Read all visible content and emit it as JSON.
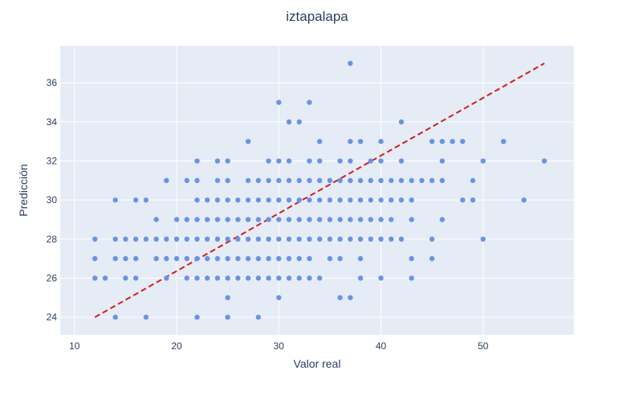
{
  "chart_data": {
    "type": "scatter",
    "title": "iztapalapa",
    "xlabel": "Valor real",
    "ylabel": "Predicción",
    "xlim": [
      8.6,
      58.9
    ],
    "ylim": [
      23.1,
      37.9
    ],
    "xticks": [
      10,
      20,
      30,
      40,
      50
    ],
    "yticks": [
      24,
      26,
      28,
      30,
      32,
      34,
      36
    ],
    "grid": true,
    "colors": {
      "points": "#6a93e4",
      "reference": "#cc1f1f",
      "plot_bg": "#e5ecf6",
      "grid": "#ffffff",
      "text": "#2a3f5f"
    },
    "reference_line": {
      "x": [
        12,
        56
      ],
      "y": [
        24,
        37
      ]
    },
    "points": [
      [
        12,
        26
      ],
      [
        12,
        27
      ],
      [
        12,
        28
      ],
      [
        13,
        26
      ],
      [
        14,
        24
      ],
      [
        14,
        27
      ],
      [
        14,
        28
      ],
      [
        14,
        30
      ],
      [
        15,
        26
      ],
      [
        15,
        27
      ],
      [
        15,
        28
      ],
      [
        16,
        26
      ],
      [
        16,
        27
      ],
      [
        16,
        28
      ],
      [
        16,
        30
      ],
      [
        17,
        24
      ],
      [
        17,
        28
      ],
      [
        17,
        30
      ],
      [
        18,
        27
      ],
      [
        18,
        28
      ],
      [
        18,
        29
      ],
      [
        19,
        26
      ],
      [
        19,
        27
      ],
      [
        19,
        28
      ],
      [
        19,
        31
      ],
      [
        20,
        27
      ],
      [
        20,
        28
      ],
      [
        20,
        29
      ],
      [
        21,
        26
      ],
      [
        21,
        27
      ],
      [
        21,
        28
      ],
      [
        21,
        29
      ],
      [
        21,
        31
      ],
      [
        22,
        24
      ],
      [
        22,
        26
      ],
      [
        22,
        27
      ],
      [
        22,
        28
      ],
      [
        22,
        29
      ],
      [
        22,
        30
      ],
      [
        22,
        31
      ],
      [
        22,
        32
      ],
      [
        23,
        26
      ],
      [
        23,
        27
      ],
      [
        23,
        28
      ],
      [
        23,
        29
      ],
      [
        23,
        30
      ],
      [
        24,
        26
      ],
      [
        24,
        27
      ],
      [
        24,
        28
      ],
      [
        24,
        29
      ],
      [
        24,
        30
      ],
      [
        24,
        31
      ],
      [
        24,
        32
      ],
      [
        25,
        24
      ],
      [
        25,
        25
      ],
      [
        25,
        26
      ],
      [
        25,
        27
      ],
      [
        25,
        28
      ],
      [
        25,
        29
      ],
      [
        25,
        30
      ],
      [
        25,
        31
      ],
      [
        25,
        32
      ],
      [
        26,
        26
      ],
      [
        26,
        27
      ],
      [
        26,
        28
      ],
      [
        26,
        29
      ],
      [
        26,
        30
      ],
      [
        27,
        26
      ],
      [
        27,
        27
      ],
      [
        27,
        28
      ],
      [
        27,
        29
      ],
      [
        27,
        30
      ],
      [
        27,
        31
      ],
      [
        27,
        33
      ],
      [
        28,
        24
      ],
      [
        28,
        26
      ],
      [
        28,
        27
      ],
      [
        28,
        28
      ],
      [
        28,
        29
      ],
      [
        28,
        30
      ],
      [
        28,
        31
      ],
      [
        29,
        26
      ],
      [
        29,
        27
      ],
      [
        29,
        28
      ],
      [
        29,
        29
      ],
      [
        29,
        30
      ],
      [
        29,
        31
      ],
      [
        29,
        32
      ],
      [
        30,
        25
      ],
      [
        30,
        26
      ],
      [
        30,
        27
      ],
      [
        30,
        28
      ],
      [
        30,
        29
      ],
      [
        30,
        30
      ],
      [
        30,
        31
      ],
      [
        30,
        32
      ],
      [
        30,
        35
      ],
      [
        31,
        26
      ],
      [
        31,
        27
      ],
      [
        31,
        28
      ],
      [
        31,
        29
      ],
      [
        31,
        30
      ],
      [
        31,
        31
      ],
      [
        31,
        32
      ],
      [
        31,
        34
      ],
      [
        32,
        26
      ],
      [
        32,
        27
      ],
      [
        32,
        28
      ],
      [
        32,
        29
      ],
      [
        32,
        30
      ],
      [
        32,
        31
      ],
      [
        32,
        34
      ],
      [
        33,
        26
      ],
      [
        33,
        27
      ],
      [
        33,
        28
      ],
      [
        33,
        29
      ],
      [
        33,
        30
      ],
      [
        33,
        31
      ],
      [
        33,
        32
      ],
      [
        33,
        35
      ],
      [
        34,
        26
      ],
      [
        34,
        28
      ],
      [
        34,
        29
      ],
      [
        34,
        30
      ],
      [
        34,
        31
      ],
      [
        34,
        32
      ],
      [
        34,
        33
      ],
      [
        35,
        27
      ],
      [
        35,
        28
      ],
      [
        35,
        29
      ],
      [
        35,
        30
      ],
      [
        35,
        31
      ],
      [
        36,
        25
      ],
      [
        36,
        27
      ],
      [
        36,
        28
      ],
      [
        36,
        29
      ],
      [
        36,
        30
      ],
      [
        36,
        31
      ],
      [
        36,
        32
      ],
      [
        37,
        25
      ],
      [
        37,
        28
      ],
      [
        37,
        29
      ],
      [
        37,
        30
      ],
      [
        37,
        31
      ],
      [
        37,
        32
      ],
      [
        37,
        33
      ],
      [
        37,
        37
      ],
      [
        38,
        26
      ],
      [
        38,
        27
      ],
      [
        38,
        28
      ],
      [
        38,
        29
      ],
      [
        38,
        30
      ],
      [
        38,
        31
      ],
      [
        38,
        33
      ],
      [
        39,
        28
      ],
      [
        39,
        29
      ],
      [
        39,
        30
      ],
      [
        39,
        31
      ],
      [
        39,
        32
      ],
      [
        40,
        26
      ],
      [
        40,
        28
      ],
      [
        40,
        29
      ],
      [
        40,
        30
      ],
      [
        40,
        31
      ],
      [
        40,
        32
      ],
      [
        40,
        33
      ],
      [
        41,
        28
      ],
      [
        41,
        29
      ],
      [
        41,
        30
      ],
      [
        41,
        31
      ],
      [
        42,
        28
      ],
      [
        42,
        30
      ],
      [
        42,
        31
      ],
      [
        42,
        32
      ],
      [
        42,
        34
      ],
      [
        43,
        26
      ],
      [
        43,
        27
      ],
      [
        43,
        29
      ],
      [
        43,
        30
      ],
      [
        43,
        31
      ],
      [
        44,
        31
      ],
      [
        45,
        27
      ],
      [
        45,
        28
      ],
      [
        45,
        31
      ],
      [
        45,
        33
      ],
      [
        46,
        29
      ],
      [
        46,
        31
      ],
      [
        46,
        32
      ],
      [
        46,
        33
      ],
      [
        47,
        33
      ],
      [
        48,
        30
      ],
      [
        48,
        33
      ],
      [
        49,
        30
      ],
      [
        49,
        31
      ],
      [
        50,
        28
      ],
      [
        50,
        32
      ],
      [
        52,
        33
      ],
      [
        54,
        30
      ],
      [
        56,
        32
      ]
    ]
  }
}
